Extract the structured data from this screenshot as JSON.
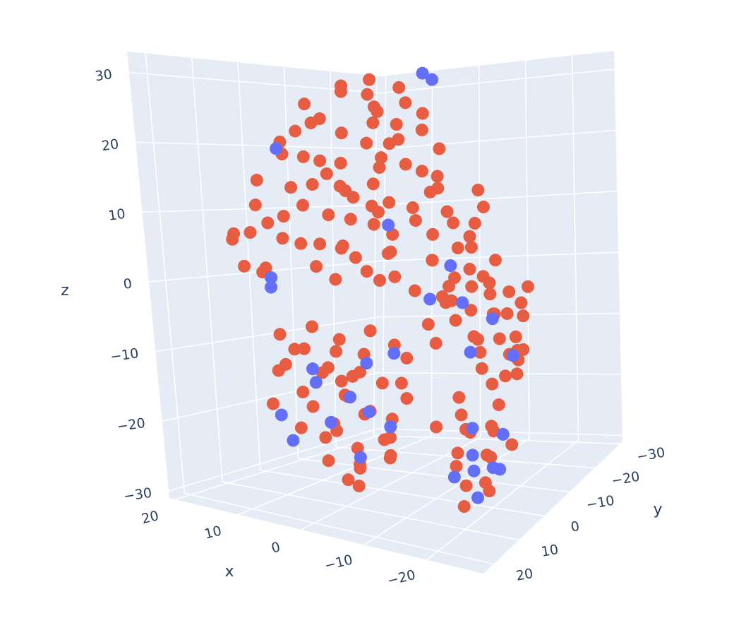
{
  "chart_data": {
    "type": "scatter3d",
    "xlabel": "x",
    "ylabel": "y",
    "zlabel": "z",
    "xlim": [
      -29,
      21
    ],
    "ylim": [
      -31,
      24
    ],
    "zlim": [
      -31,
      33
    ],
    "xticks": [
      20,
      10,
      0,
      {
        "value": -10,
        "label": "−10"
      },
      {
        "value": -20,
        "label": "−20"
      }
    ],
    "yticks": [
      {
        "value": -30,
        "label": "−30"
      },
      {
        "value": -20,
        "label": "−20"
      },
      {
        "value": -10,
        "label": "−10"
      },
      0,
      10,
      20
    ],
    "zticks": [
      {
        "value": -30,
        "label": "−30"
      },
      {
        "value": -20,
        "label": "−20"
      },
      {
        "value": -10,
        "label": "−10"
      },
      0,
      10,
      20,
      30
    ],
    "grid": true,
    "marker_radius": 9,
    "series": [
      {
        "color": "#636efa",
        "x": [
          -8,
          -9,
          12,
          15,
          13,
          -3,
          -12,
          -15,
          -18,
          -6,
          -22,
          -10,
          8,
          5,
          1,
          12,
          -2,
          3,
          9,
          -5,
          0,
          6,
          -4,
          -15,
          -18,
          -21,
          -14,
          -22,
          -19,
          -17,
          -20
        ],
        "y": [
          -6,
          -7,
          4,
          3,
          6,
          -2,
          -5,
          -3,
          -7,
          -8,
          -6,
          -13,
          4,
          8,
          0,
          7,
          5,
          2,
          9,
          4,
          5,
          3,
          0,
          -4,
          2,
          -3,
          1,
          3,
          -5,
          0,
          5
        ],
        "z": [
          32,
          31,
          20,
          0,
          -1,
          9,
          3,
          -2,
          -5,
          -3,
          -10,
          -12,
          -13,
          -14,
          -12,
          -20,
          -18,
          -17,
          -23,
          -20,
          -25,
          -21,
          -10,
          -21,
          -23,
          -21,
          -27,
          -24,
          -27,
          -26,
          -28
        ]
      },
      {
        "color": "#e85c41",
        "x": [
          8,
          5,
          2,
          -1,
          -4,
          -7,
          -10,
          4,
          0,
          -3,
          -6,
          -9,
          -12,
          10,
          7,
          1,
          -2,
          -5,
          -8,
          -13,
          12,
          3,
          14,
          11,
          8,
          5,
          2,
          -1,
          -4,
          -7,
          -10,
          -13,
          -16,
          -19,
          15,
          12,
          9,
          6,
          3,
          0,
          -3,
          -6,
          -9,
          -12,
          -15,
          -18,
          -21,
          17,
          13,
          10,
          7,
          4,
          1,
          -2,
          -5,
          -8,
          -11,
          -14,
          -17,
          -20,
          18,
          16,
          14,
          11,
          8,
          5,
          2,
          -1,
          -4,
          -7,
          -10,
          -13,
          -16,
          -19,
          -22,
          -24,
          13,
          9,
          6,
          3,
          0,
          -3,
          -6,
          -9,
          -12,
          -15,
          -18,
          -21,
          -23,
          17,
          16,
          15,
          16,
          -10,
          -13,
          -16,
          -19,
          -22,
          -23,
          -14,
          -18,
          -21,
          -22,
          -23,
          -12,
          -16,
          -20,
          -23,
          -24,
          -8,
          -11,
          -15,
          -19,
          -17,
          -22,
          -24,
          -25,
          -9,
          -13,
          -7,
          12,
          9,
          6,
          3,
          0,
          -3,
          -6,
          13,
          10,
          7,
          4,
          1,
          -2,
          -5,
          -8,
          14,
          11,
          8,
          5,
          2,
          -1,
          -4,
          -7,
          12,
          9,
          6,
          3,
          0,
          -3,
          -6,
          10,
          7,
          4,
          1,
          -2,
          5,
          2,
          -1,
          3,
          0,
          -4,
          -7,
          -14,
          -17,
          -20,
          -13,
          -16,
          -19,
          -22,
          -14,
          -17,
          -20,
          -23,
          -15,
          -18,
          -21,
          -16,
          -19,
          -17
        ],
        "y": [
          2,
          -3,
          1,
          -2,
          3,
          -1,
          2,
          4,
          -5,
          0,
          5,
          -4,
          1,
          -2,
          6,
          3,
          -7,
          -3,
          4,
          -2,
          3,
          -6,
          0,
          -5,
          3,
          -2,
          6,
          -4,
          1,
          -6,
          3,
          -1,
          4,
          -3,
          5,
          1,
          -7,
          4,
          0,
          -3,
          7,
          2,
          -5,
          5,
          0,
          -6,
          2,
          3,
          -3,
          6,
          -1,
          -8,
          2,
          -1,
          5,
          -2,
          -8,
          3,
          -3,
          6,
          -1,
          6,
          1,
          -4,
          5,
          -1,
          3,
          -6,
          0,
          4,
          -3,
          2,
          -5,
          1,
          -2,
          4,
          7,
          0,
          -6,
          4,
          0,
          -3,
          6,
          1,
          -6,
          3,
          -1,
          5,
          -4,
          9,
          10,
          5,
          8,
          -8,
          -4,
          -10,
          -6,
          -12,
          -3,
          -14,
          -2,
          -9,
          -10,
          0,
          -11,
          -6,
          -13,
          -3,
          -4,
          -4,
          -1,
          -8,
          -4,
          -12,
          -7,
          -6,
          -2,
          -9,
          -13,
          -11,
          6,
          2,
          9,
          4,
          0,
          7,
          3,
          1,
          8,
          -1,
          6,
          2,
          9,
          -2,
          5,
          4,
          -3,
          7,
          1,
          5,
          -1,
          8,
          2,
          9,
          3,
          -2,
          7,
          3,
          0,
          6,
          5,
          0,
          8,
          4,
          1,
          6,
          2,
          7,
          4,
          6,
          3,
          8,
          -2,
          3,
          -4,
          4,
          0,
          -3,
          2,
          -5,
          5,
          1,
          -2,
          2,
          -4,
          4,
          1,
          -1,
          4
        ],
        "z": [
          27,
          29,
          30,
          31,
          29,
          30,
          28,
          25,
          26,
          27,
          25,
          26,
          24,
          24,
          23,
          23,
          24,
          22,
          22,
          21,
          21,
          21,
          19,
          18,
          19,
          18,
          17,
          19,
          18,
          17,
          19,
          17,
          16,
          15,
          15,
          14,
          14,
          15,
          14,
          15,
          14,
          13,
          14,
          13,
          12,
          12,
          11,
          11,
          11,
          10,
          10,
          11,
          10,
          11,
          10,
          10,
          9,
          9,
          8,
          8,
          8,
          7,
          6,
          5,
          6,
          5,
          6,
          7,
          5,
          6,
          4,
          5,
          6,
          4,
          5,
          3,
          2,
          2,
          3,
          1,
          2,
          1,
          2,
          0,
          1,
          0,
          1,
          -1,
          0,
          6,
          7,
          1,
          2,
          -3,
          -5,
          -2,
          -4,
          -1,
          -3,
          -6,
          -7,
          -8,
          -5,
          -6,
          -9,
          -10,
          -11,
          -9,
          -10,
          -6,
          -8,
          -13,
          -14,
          -15,
          -13,
          -2,
          -8,
          -1,
          0,
          -4,
          -8,
          -7,
          -9,
          -8,
          -7,
          -9,
          -8,
          -11,
          -12,
          -11,
          -12,
          -13,
          -12,
          -11,
          -13,
          -14,
          -15,
          -16,
          -15,
          -16,
          -15,
          -17,
          -16,
          -18,
          -19,
          -18,
          -20,
          -19,
          -20,
          -21,
          -22,
          -23,
          -22,
          -24,
          -23,
          -26,
          -27,
          -26,
          -29,
          -29,
          -25,
          -23,
          -16,
          -17,
          -17,
          -19,
          -20,
          -20,
          -19,
          -22,
          -22,
          -23,
          -22,
          -25,
          -25,
          -26,
          -28,
          -29,
          -30
        ]
      }
    ]
  }
}
